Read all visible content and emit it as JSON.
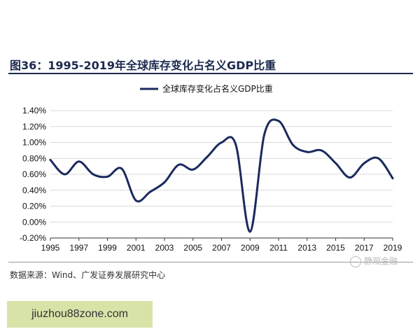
{
  "figure": {
    "title": "图36：1995-2019年全球库存变化占名义GDP比重",
    "source": "数据来源：Wind、广发证券发展研究中心",
    "watermark": "静观金融",
    "banner": "jiuzhou88zone.com"
  },
  "chart_data": {
    "type": "line",
    "title": "",
    "xlabel": "",
    "ylabel": "",
    "ylim": [
      -0.2,
      1.4
    ],
    "y_ticks": [
      "1.40%",
      "1.20%",
      "1.00%",
      "0.80%",
      "0.60%",
      "0.40%",
      "0.20%",
      "0.00%",
      "-0.20%"
    ],
    "y_tick_values": [
      1.4,
      1.2,
      1.0,
      0.8,
      0.6,
      0.4,
      0.2,
      0.0,
      -0.2
    ],
    "x_ticks": [
      "1995",
      "1997",
      "1999",
      "2001",
      "2003",
      "2005",
      "2007",
      "2009",
      "2011",
      "2013",
      "2015",
      "2017",
      "2019"
    ],
    "x_tick_values": [
      1995,
      1997,
      1999,
      2001,
      2003,
      2005,
      2007,
      2009,
      2011,
      2013,
      2015,
      2017,
      2019
    ],
    "legend_position": "top-center",
    "grid": "horizontal",
    "series": [
      {
        "name": "全球库存变化占名义GDP比重",
        "color": "#1b2a5e",
        "x": [
          1995,
          1996,
          1997,
          1998,
          1999,
          2000,
          2001,
          2002,
          2003,
          2004,
          2005,
          2006,
          2007,
          2008,
          2009,
          2010,
          2011,
          2012,
          2013,
          2014,
          2015,
          2016,
          2017,
          2018,
          2019
        ],
        "values": [
          0.78,
          0.6,
          0.76,
          0.6,
          0.57,
          0.67,
          0.27,
          0.38,
          0.5,
          0.72,
          0.66,
          0.82,
          1.0,
          0.97,
          -0.12,
          1.1,
          1.27,
          0.97,
          0.88,
          0.9,
          0.74,
          0.56,
          0.74,
          0.8,
          0.55
        ]
      }
    ]
  }
}
